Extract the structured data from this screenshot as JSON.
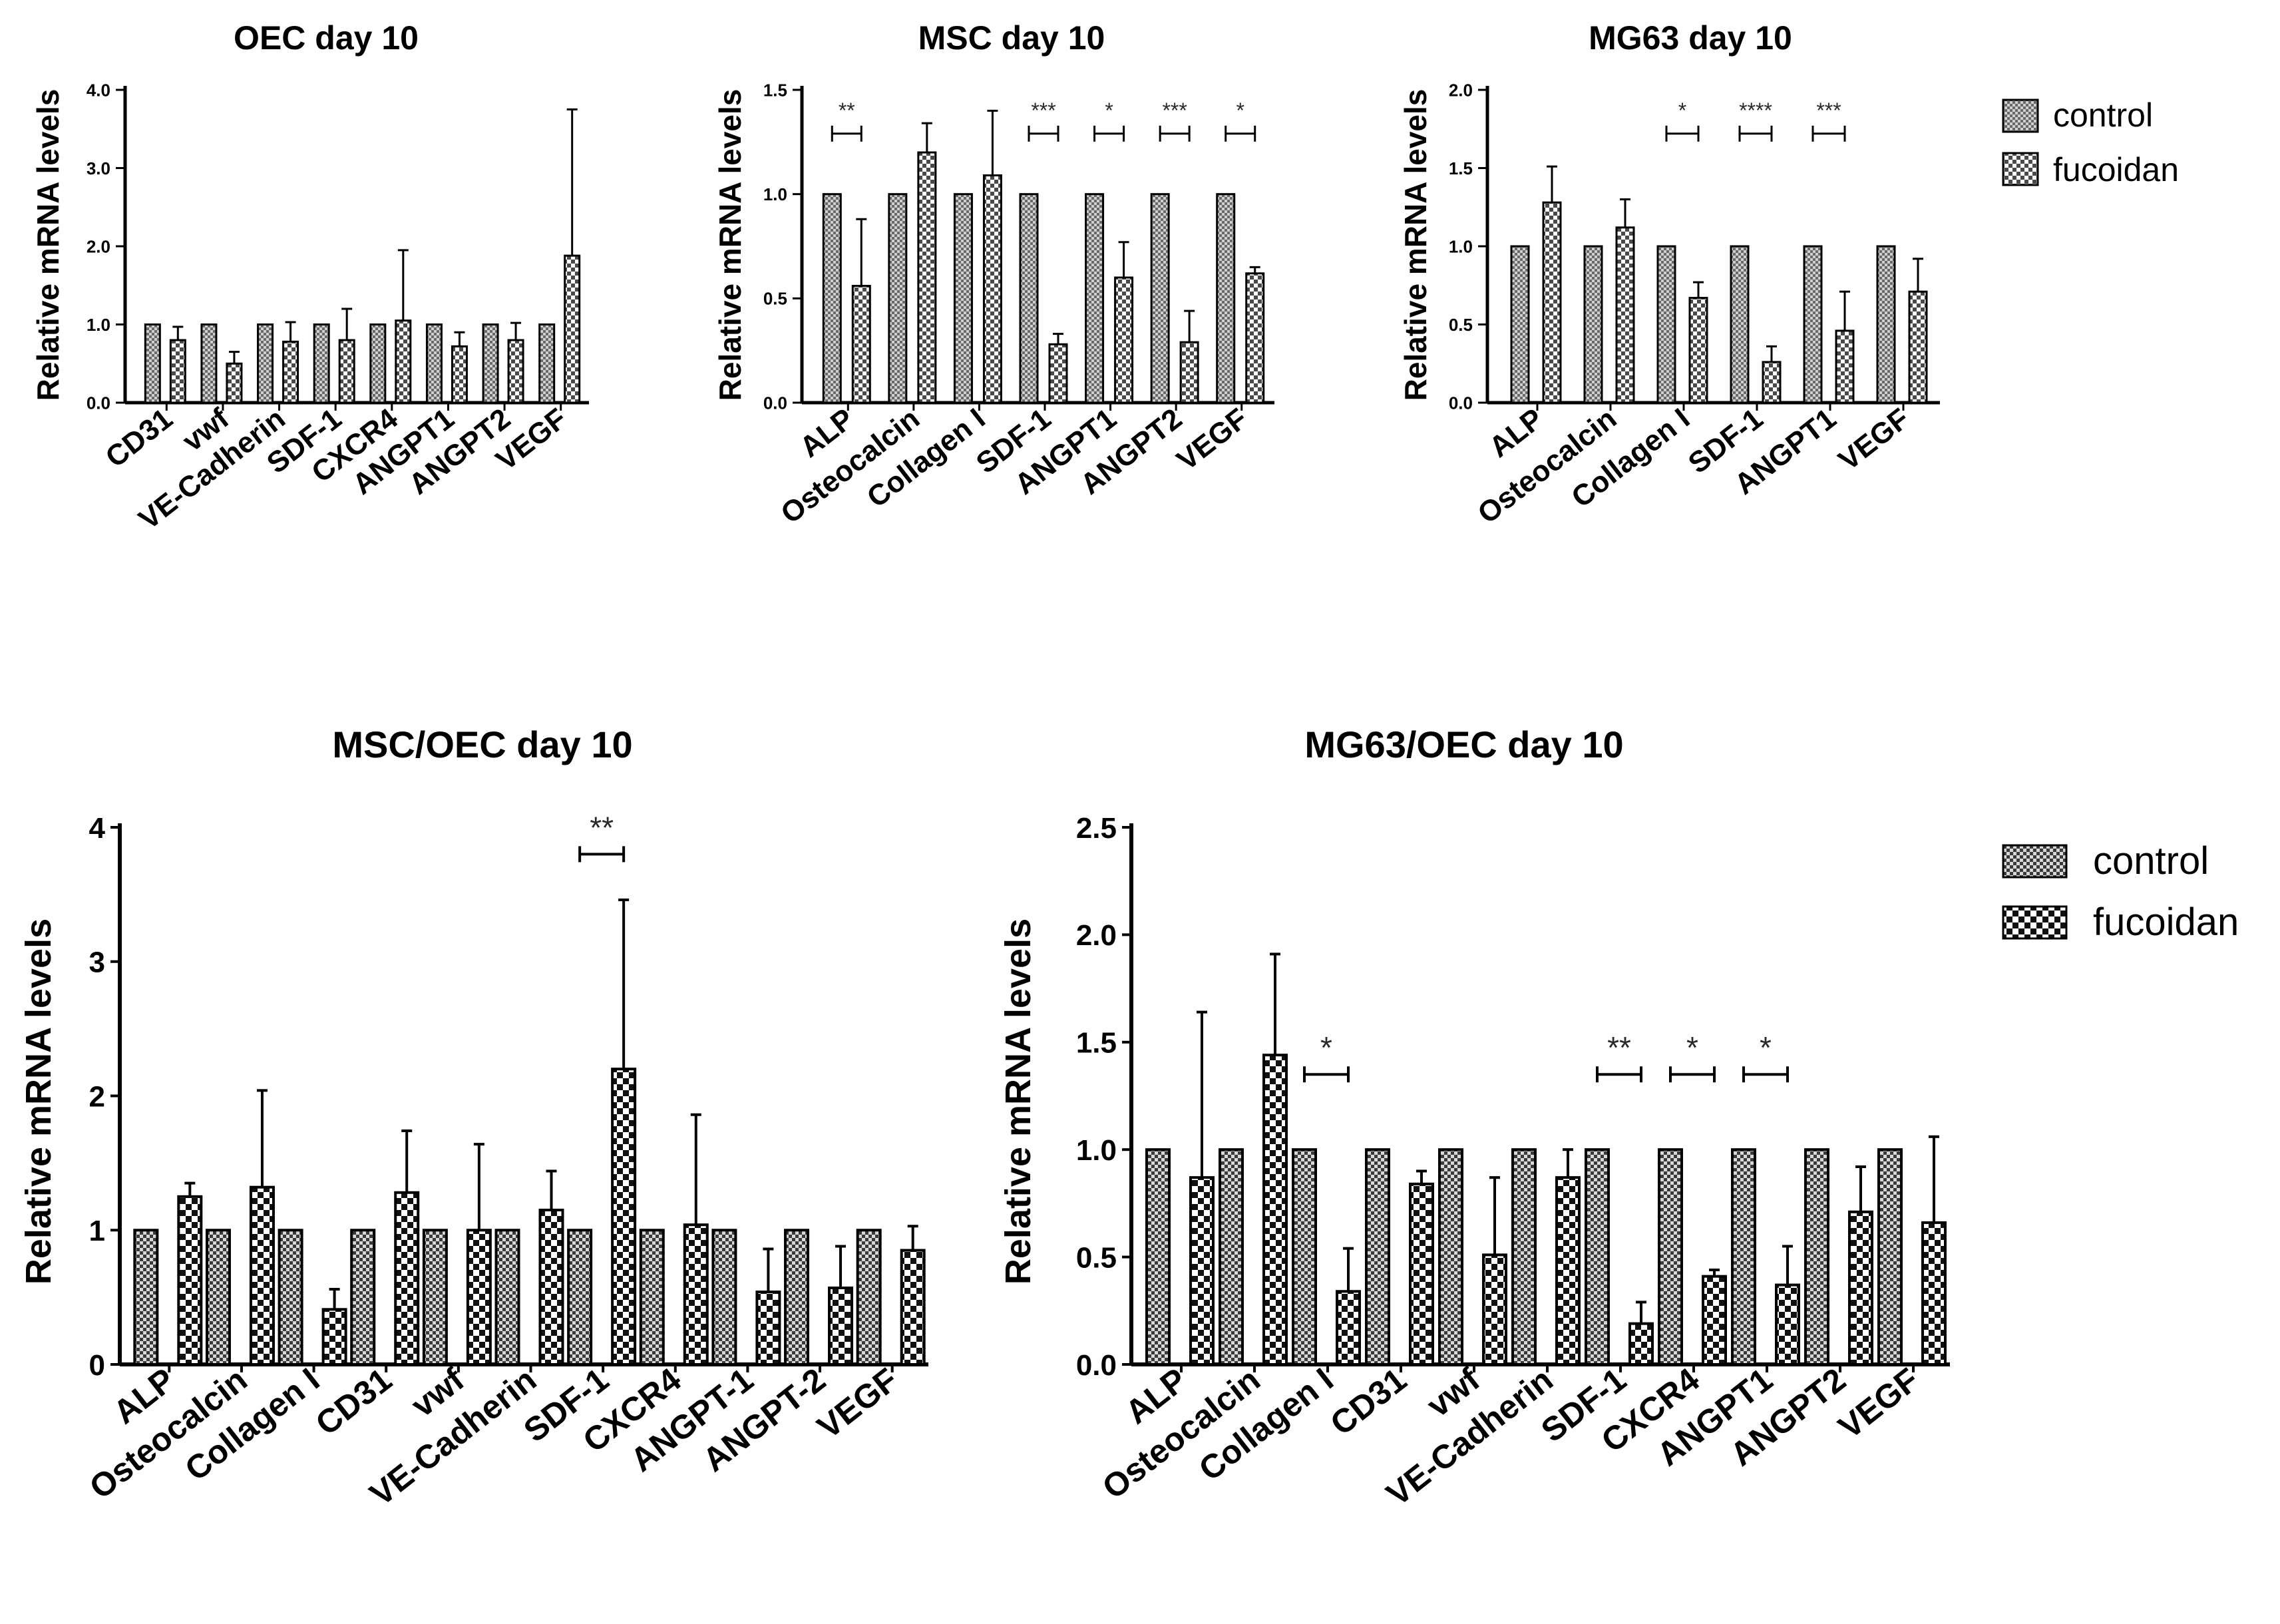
{
  "legends": [
    {
      "entries": [
        "control",
        "fucoidan"
      ]
    },
    {
      "entries": [
        "control",
        "fucoidan"
      ]
    }
  ],
  "chart_data": [
    {
      "type": "bar",
      "title": "OEC day 10",
      "ylabel": "Relative mRNA levels",
      "xlabel": "",
      "ylim": [
        0,
        4.0
      ],
      "yticks": [
        "0.0",
        "1.0",
        "2.0",
        "3.0",
        "4.0"
      ],
      "yticks_values": [
        0,
        1,
        2,
        3,
        4
      ],
      "categories": [
        "CD31",
        "vwf",
        "VE-Cadherin",
        "SDF-1",
        "CXCR4",
        "ANGPT1",
        "ANGPT2",
        "VEGF"
      ],
      "series": [
        {
          "name": "control",
          "values": [
            1.0,
            1.0,
            1.0,
            1.0,
            1.0,
            1.0,
            1.0,
            1.0
          ],
          "errors": [
            0,
            0,
            0,
            0,
            0,
            0,
            0,
            0
          ]
        },
        {
          "name": "fucoidan",
          "values": [
            0.8,
            0.5,
            0.78,
            0.8,
            1.05,
            0.72,
            0.8,
            1.88
          ],
          "errors": [
            0.17,
            0.15,
            0.25,
            0.4,
            0.9,
            0.18,
            0.22,
            1.87
          ]
        }
      ],
      "significance": []
    },
    {
      "type": "bar",
      "title": "MSC day 10",
      "ylabel": "Relative mRNA levels",
      "xlabel": "",
      "ylim": [
        0,
        1.5
      ],
      "yticks": [
        "0.0",
        "0.5",
        "1.0",
        "1.5"
      ],
      "yticks_values": [
        0,
        0.5,
        1.0,
        1.5
      ],
      "categories": [
        "ALP",
        "Osteocalcin",
        "Collagen I",
        "SDF-1",
        "ANGPT1",
        "ANGPT2",
        "VEGF"
      ],
      "series": [
        {
          "name": "control",
          "values": [
            1.0,
            1.0,
            1.0,
            1.0,
            1.0,
            1.0,
            1.0
          ],
          "errors": [
            0,
            0,
            0,
            0,
            0,
            0,
            0
          ]
        },
        {
          "name": "fucoidan",
          "values": [
            0.56,
            1.2,
            1.09,
            0.28,
            0.6,
            0.29,
            0.62
          ],
          "errors": [
            0.32,
            0.14,
            0.31,
            0.05,
            0.17,
            0.15,
            0.03
          ]
        }
      ],
      "significance": [
        {
          "category_index": 0,
          "label": "**"
        },
        {
          "category_index": 3,
          "label": "***"
        },
        {
          "category_index": 4,
          "label": "*"
        },
        {
          "category_index": 5,
          "label": "***"
        },
        {
          "category_index": 6,
          "label": "*"
        }
      ]
    },
    {
      "type": "bar",
      "title": "MG63 day 10",
      "ylabel": "Relative mRNA levels",
      "xlabel": "",
      "ylim": [
        0,
        2.0
      ],
      "yticks": [
        "0.0",
        "0.5",
        "1.0",
        "1.5",
        "2.0"
      ],
      "yticks_values": [
        0,
        0.5,
        1.0,
        1.5,
        2.0
      ],
      "categories": [
        "ALP",
        "Osteocalcin",
        "Collagen I",
        "SDF-1",
        "ANGPT1",
        "VEGF"
      ],
      "series": [
        {
          "name": "control",
          "values": [
            1.0,
            1.0,
            1.0,
            1.0,
            1.0,
            1.0
          ],
          "errors": [
            0,
            0,
            0,
            0,
            0,
            0
          ]
        },
        {
          "name": "fucoidan",
          "values": [
            1.28,
            1.12,
            0.67,
            0.26,
            0.46,
            0.71
          ],
          "errors": [
            0.23,
            0.18,
            0.1,
            0.1,
            0.25,
            0.21
          ]
        }
      ],
      "significance": [
        {
          "category_index": 2,
          "label": "*"
        },
        {
          "category_index": 3,
          "label": "****"
        },
        {
          "category_index": 4,
          "label": "***"
        }
      ]
    },
    {
      "type": "bar",
      "title": "MSC/OEC day 10",
      "ylabel": "Relative mRNA levels",
      "xlabel": "",
      "ylim": [
        0,
        4
      ],
      "yticks": [
        "0",
        "1",
        "2",
        "3",
        "4"
      ],
      "yticks_values": [
        0,
        1,
        2,
        3,
        4
      ],
      "categories": [
        "ALP",
        "Osteocalcin",
        "Collagen I",
        "CD31",
        "vwf",
        "VE-Cadherin",
        "SDF-1",
        "CXCR4",
        "ANGPT-1",
        "ANGPT-2",
        "VEGF"
      ],
      "series": [
        {
          "name": "control",
          "values": [
            1,
            1,
            1,
            1,
            1,
            1,
            1,
            1,
            1,
            1,
            1
          ],
          "errors": [
            0,
            0,
            0,
            0,
            0,
            0,
            0,
            0,
            0,
            0,
            0
          ]
        },
        {
          "name": "fucoidan",
          "values": [
            1.25,
            1.32,
            0.41,
            1.28,
            1.0,
            1.15,
            2.2,
            1.04,
            0.54,
            0.57,
            0.85
          ],
          "errors": [
            0.1,
            0.72,
            0.15,
            0.46,
            0.64,
            0.29,
            1.26,
            0.82,
            0.32,
            0.31,
            0.18
          ]
        }
      ],
      "significance": [
        {
          "category_index": 6,
          "label": "**"
        }
      ]
    },
    {
      "type": "bar",
      "title": "MG63/OEC day 10",
      "ylabel": "Relative mRNA levels",
      "xlabel": "",
      "ylim": [
        0,
        2.5
      ],
      "yticks": [
        "0.0",
        "0.5",
        "1.0",
        "1.5",
        "2.0",
        "2.5"
      ],
      "yticks_values": [
        0,
        0.5,
        1.0,
        1.5,
        2.0,
        2.5
      ],
      "categories": [
        "ALP",
        "Osteocalcin",
        "Collagen I",
        "CD31",
        "vwf",
        "VE-Cadherin",
        "SDF-1",
        "CXCR4",
        "ANGPT1",
        "ANGPT2",
        "VEGF"
      ],
      "series": [
        {
          "name": "control",
          "values": [
            1.0,
            1.0,
            1.0,
            1.0,
            1.0,
            1.0,
            1.0,
            1.0,
            1.0,
            1.0,
            1.0
          ],
          "errors": [
            0,
            0,
            0,
            0,
            0,
            0,
            0,
            0,
            0,
            0,
            0
          ]
        },
        {
          "name": "fucoidan",
          "values": [
            0.87,
            1.44,
            0.34,
            0.84,
            0.51,
            0.87,
            0.19,
            0.41,
            0.37,
            0.71,
            0.66
          ],
          "errors": [
            0.77,
            0.47,
            0.2,
            0.06,
            0.36,
            0.13,
            0.1,
            0.03,
            0.18,
            0.21,
            0.4
          ]
        }
      ],
      "significance": [
        {
          "category_index": 2,
          "label": "*"
        },
        {
          "category_index": 6,
          "label": "**"
        },
        {
          "category_index": 7,
          "label": "*"
        },
        {
          "category_index": 8,
          "label": "*"
        }
      ]
    }
  ]
}
